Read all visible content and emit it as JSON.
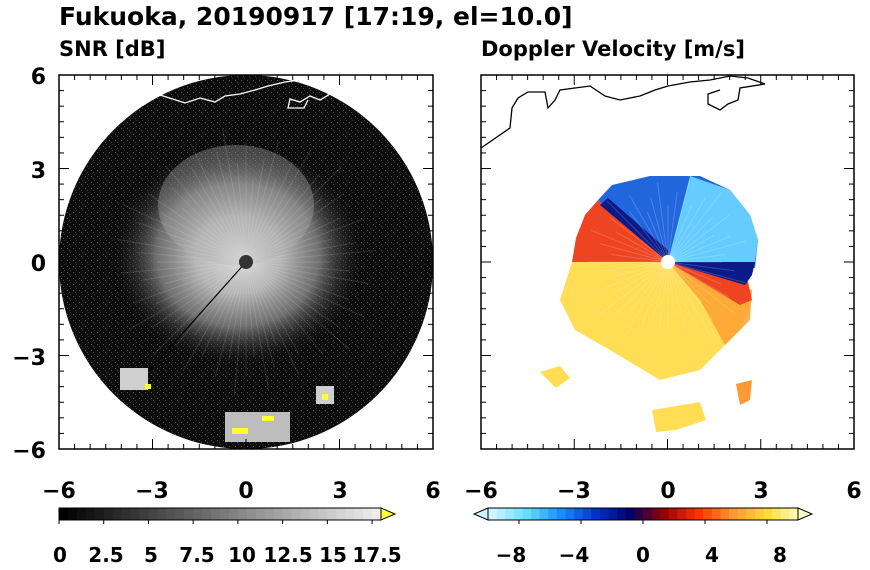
{
  "title": "Fukuoka, 20190917 [17:19, el=10.0]",
  "panels": [
    {
      "subtitle": "SNR [dB]"
    },
    {
      "subtitle": "Doppler Velocity [m/s]"
    }
  ],
  "chart_data": [
    {
      "type": "heatmap",
      "variable": "SNR",
      "xlim": [
        -6,
        6
      ],
      "ylim": [
        -6,
        6
      ],
      "x_ticks": [
        "−6",
        "−3",
        "0",
        "3",
        "6"
      ],
      "y_ticks": [
        "6",
        "3",
        "0",
        "−3",
        "−6"
      ],
      "colorbar": {
        "min": 0,
        "max": 18,
        "extend": "max",
        "tick_labels": [
          "0",
          "2.5",
          "5",
          "7.5",
          "10",
          "12.5",
          "15",
          "17.5"
        ],
        "colors_from": "#000000",
        "colors_to": "#eeeeee",
        "extend_color": "#ffff33"
      },
      "scan_radius": 6,
      "echo_grey": "#cfcfcf",
      "strong_echo_color": "#ffff33"
    },
    {
      "type": "heatmap",
      "variable": "Doppler Velocity",
      "xlim": [
        -6,
        6
      ],
      "ylim": [
        -6,
        6
      ],
      "x_ticks": [
        "−6",
        "−3",
        "0",
        "3",
        "6"
      ],
      "colorbar": {
        "min": -10,
        "max": 10,
        "extend": "both",
        "tick_labels": [
          "−8",
          "−4",
          "0",
          "4",
          "8"
        ],
        "neg_colors": [
          "#ccf5ff",
          "#66ddff",
          "#1a8cff",
          "#0033cc",
          "#000066"
        ],
        "pos_colors": [
          "#990000",
          "#ff3300",
          "#ff9933",
          "#ffdd33",
          "#ffffcc"
        ]
      },
      "blue_color": "#2266dd",
      "red_color": "#ee4422",
      "yellow_color": "#ffdd55"
    }
  ]
}
